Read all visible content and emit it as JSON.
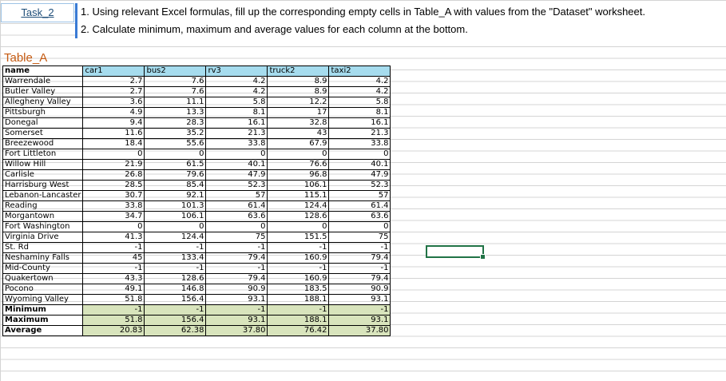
{
  "task": {
    "label": "Task_2",
    "lines": [
      "1. Using relevant Excel formulas, fill up the corresponding empty cells in Table_A with values from the \"Dataset\" worksheet.",
      "2. Calculate minimum, maximum and average values for each column at the bottom."
    ]
  },
  "table": {
    "title": "Table_A",
    "headers": [
      "name",
      "car1",
      "bus2",
      "rv3",
      "truck2",
      "taxi2"
    ],
    "rows": [
      [
        "Warrendale",
        "2.7",
        "7.6",
        "4.2",
        "8.9",
        "4.2"
      ],
      [
        "Butler Valley",
        "2.7",
        "7.6",
        "4.2",
        "8.9",
        "4.2"
      ],
      [
        "Allegheny Valley",
        "3.6",
        "11.1",
        "5.8",
        "12.2",
        "5.8"
      ],
      [
        "Pittsburgh",
        "4.9",
        "13.3",
        "8.1",
        "17",
        "8.1"
      ],
      [
        "Donegal",
        "9.4",
        "28.3",
        "16.1",
        "32.8",
        "16.1"
      ],
      [
        "Somerset",
        "11.6",
        "35.2",
        "21.3",
        "43",
        "21.3"
      ],
      [
        "Breezewood",
        "18.4",
        "55.6",
        "33.8",
        "67.9",
        "33.8"
      ],
      [
        "Fort Littleton",
        "0",
        "0",
        "0",
        "0",
        "0"
      ],
      [
        "Willow Hill",
        "21.9",
        "61.5",
        "40.1",
        "76.6",
        "40.1"
      ],
      [
        "Carlisle",
        "26.8",
        "79.6",
        "47.9",
        "96.8",
        "47.9"
      ],
      [
        "Harrisburg West",
        "28.5",
        "85.4",
        "52.3",
        "106.1",
        "52.3"
      ],
      [
        "Lebanon-Lancaster",
        "30.7",
        "92.1",
        "57",
        "115.1",
        "57"
      ],
      [
        "Reading",
        "33.8",
        "101.3",
        "61.4",
        "124.4",
        "61.4"
      ],
      [
        "Morgantown",
        "34.7",
        "106.1",
        "63.6",
        "128.6",
        "63.6"
      ],
      [
        "Fort Washington",
        "0",
        "0",
        "0",
        "0",
        "0"
      ],
      [
        "Virginia Drive",
        "41.3",
        "124.4",
        "75",
        "151.5",
        "75"
      ],
      [
        "St. Rd",
        "-1",
        "-1",
        "-1",
        "-1",
        "-1"
      ],
      [
        "Neshaminy Falls",
        "45",
        "133.4",
        "79.4",
        "160.9",
        "79.4"
      ],
      [
        "Mid-County",
        "-1",
        "-1",
        "-1",
        "-1",
        "-1"
      ],
      [
        "Quakertown",
        "43.3",
        "128.6",
        "79.4",
        "160.9",
        "79.4"
      ],
      [
        "Pocono",
        "49.1",
        "146.8",
        "90.9",
        "183.5",
        "90.9"
      ],
      [
        "Wyoming Valley",
        "51.8",
        "156.4",
        "93.1",
        "188.1",
        "93.1"
      ]
    ],
    "stats": [
      [
        "Minimum",
        "-1",
        "-1",
        "-1",
        "-1",
        "-1"
      ],
      [
        "Maximum",
        "51.8",
        "156.4",
        "93.1",
        "188.1",
        "93.1"
      ],
      [
        "Average",
        "20.83",
        "62.38",
        "37.80",
        "76.42",
        "37.80"
      ]
    ]
  },
  "colors": {
    "header_fill": "#a6dcee",
    "stats_fill": "#d8e4bc",
    "title_color": "#c55a11",
    "selection_border": "#217346"
  }
}
